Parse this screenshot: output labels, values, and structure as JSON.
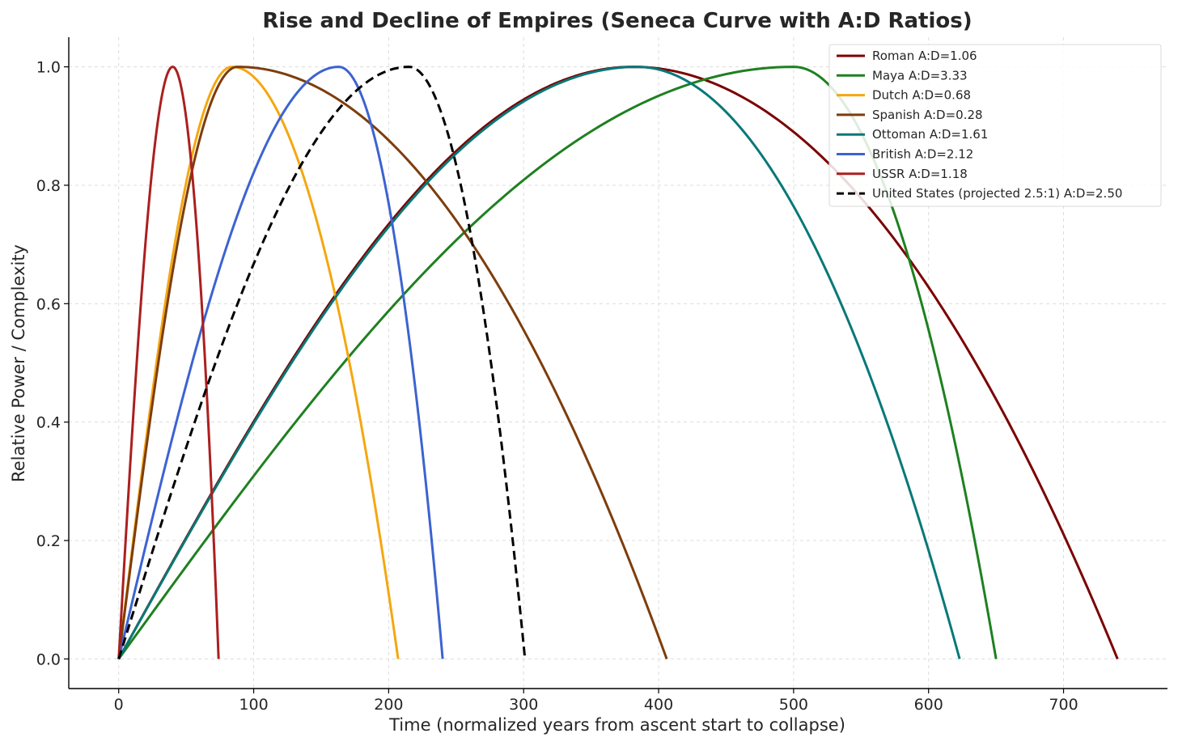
{
  "chart_data": {
    "type": "line",
    "title": "Rise and Decline of Empires (Seneca Curve with A:D Ratios)",
    "xlabel": "Time (normalized years from ascent start to collapse)",
    "ylabel": "Relative Power / Complexity",
    "xlim": [
      -37,
      777
    ],
    "ylim": [
      -0.05,
      1.05
    ],
    "xticks": [
      0,
      100,
      200,
      300,
      400,
      500,
      600,
      700
    ],
    "yticks": [
      0.0,
      0.2,
      0.4,
      0.6,
      0.8,
      1.0
    ],
    "xtick_labels": [
      "0",
      "100",
      "200",
      "300",
      "400",
      "500",
      "600",
      "700"
    ],
    "ytick_labels": [
      "0.0",
      "0.2",
      "0.4",
      "0.6",
      "0.8",
      "1.0"
    ],
    "grid": true,
    "legend_position": "top-right",
    "series": [
      {
        "name": "Roman",
        "label": "Roman  A:D=1.06",
        "color": "#7b0000",
        "dash": "solid",
        "peak_x": 381,
        "end_x": 740
      },
      {
        "name": "Maya",
        "label": "Maya  A:D=3.33",
        "color": "#1e8020",
        "dash": "solid",
        "peak_x": 500,
        "end_x": 650
      },
      {
        "name": "Dutch",
        "label": "Dutch  A:D=0.68",
        "color": "#f5a70f",
        "dash": "solid",
        "peak_x": 84,
        "end_x": 207
      },
      {
        "name": "Spanish",
        "label": "Spanish  A:D=0.28",
        "color": "#7d3d0c",
        "dash": "solid",
        "peak_x": 88,
        "end_x": 406
      },
      {
        "name": "Ottoman",
        "label": "Ottoman  A:D=1.61",
        "color": "#087878",
        "dash": "solid",
        "peak_x": 384,
        "end_x": 623
      },
      {
        "name": "British",
        "label": "British  A:D=2.12",
        "color": "#3c63d0",
        "dash": "solid",
        "peak_x": 163,
        "end_x": 240
      },
      {
        "name": "USSR",
        "label": "USSR  A:D=1.18",
        "color": "#ab1f1f",
        "dash": "solid",
        "peak_x": 40,
        "end_x": 74
      },
      {
        "name": "United States (projected 2.5:1)",
        "label": "United States (projected 2.5:1)  A:D=2.50",
        "color": "#000000",
        "dash": "dashed",
        "peak_x": 215,
        "end_x": 301
      }
    ]
  }
}
